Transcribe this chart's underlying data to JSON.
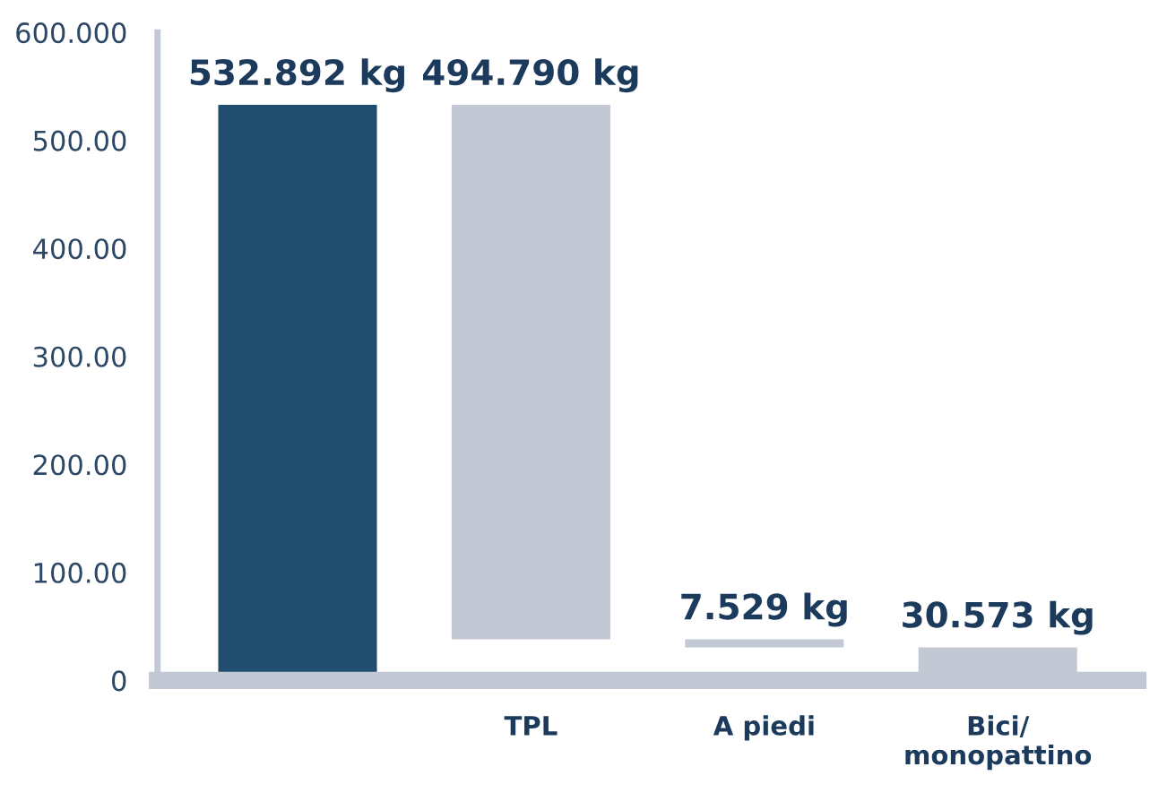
{
  "chart_data": {
    "type": "bar",
    "categories": [
      null,
      "TPL",
      "A piedi",
      "Bici/\nmonopattino"
    ],
    "values": [
      532.892,
      494.79,
      7.529,
      30.573
    ],
    "base": [
      0,
      38.102,
      30.573,
      0
    ],
    "colors": [
      "#214e6e",
      "#c3c8d5",
      "#c3c8d5",
      "#c3c8d5"
    ],
    "value_labels": [
      "532.892 kg",
      "494.790 kg",
      "7.529 kg",
      "30.573 kg"
    ],
    "ylim": [
      0,
      600
    ],
    "yticks": [
      0,
      {
        "value": 100,
        "label": "100.00"
      },
      {
        "value": 200,
        "label": "200.00"
      },
      {
        "value": 300,
        "label": "300.00"
      },
      {
        "value": 400,
        "label": "400.00"
      },
      {
        "value": 500,
        "label": "500.00"
      },
      {
        "value": 600,
        "label": "600.000"
      }
    ],
    "grid": false
  }
}
